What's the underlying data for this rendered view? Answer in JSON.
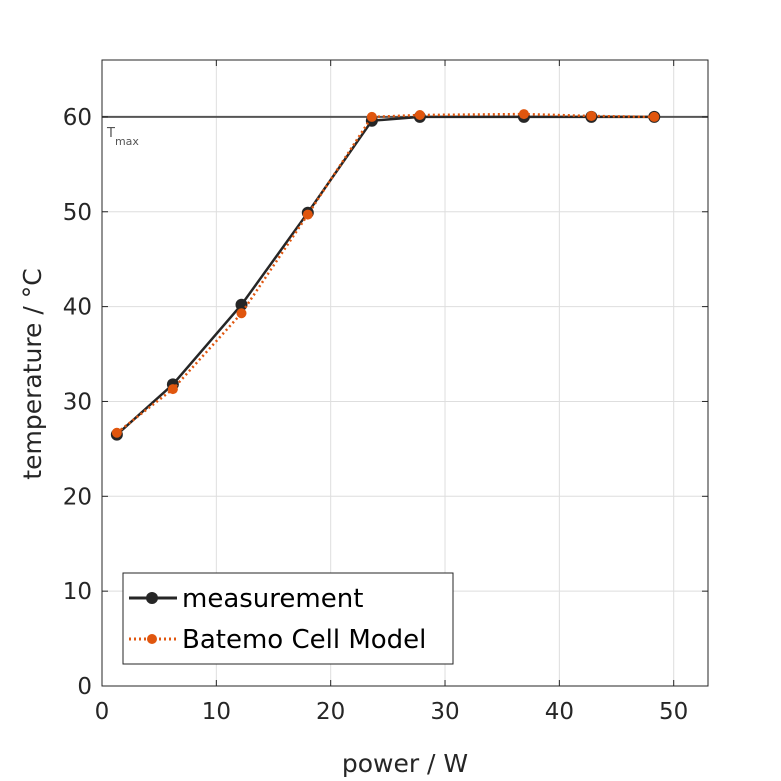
{
  "chart_data": {
    "type": "line",
    "title": "",
    "xlabel": "power / W",
    "ylabel": "temperature / °C",
    "xlim": [
      0,
      53
    ],
    "ylim": [
      0,
      66
    ],
    "xticks": [
      0,
      10,
      20,
      30,
      40,
      50
    ],
    "yticks": [
      0,
      10,
      20,
      30,
      40,
      50,
      60
    ],
    "grid": true,
    "legend_position": "bottom-left",
    "reference_line": {
      "y": 60,
      "label_main": "T",
      "label_sub": "max",
      "color": "#555555"
    },
    "series": [
      {
        "name": "measurement",
        "color": "#262626",
        "style": "solid",
        "marker": "circle",
        "x": [
          1.3,
          6.2,
          12.2,
          18.0,
          23.6,
          27.8,
          36.9,
          42.8,
          48.3
        ],
        "y": [
          26.5,
          31.8,
          40.2,
          49.9,
          59.6,
          60.0,
          60.0,
          60.0,
          60.0
        ]
      },
      {
        "name": "Batemo Cell Model",
        "color": "#e0560e",
        "style": "dotted",
        "marker": "circle",
        "x": [
          1.3,
          6.2,
          12.2,
          18.0,
          23.6,
          27.8,
          36.9,
          42.8,
          48.3
        ],
        "y": [
          26.7,
          31.3,
          39.3,
          49.7,
          60.0,
          60.2,
          60.3,
          60.1,
          60.0
        ]
      }
    ]
  }
}
